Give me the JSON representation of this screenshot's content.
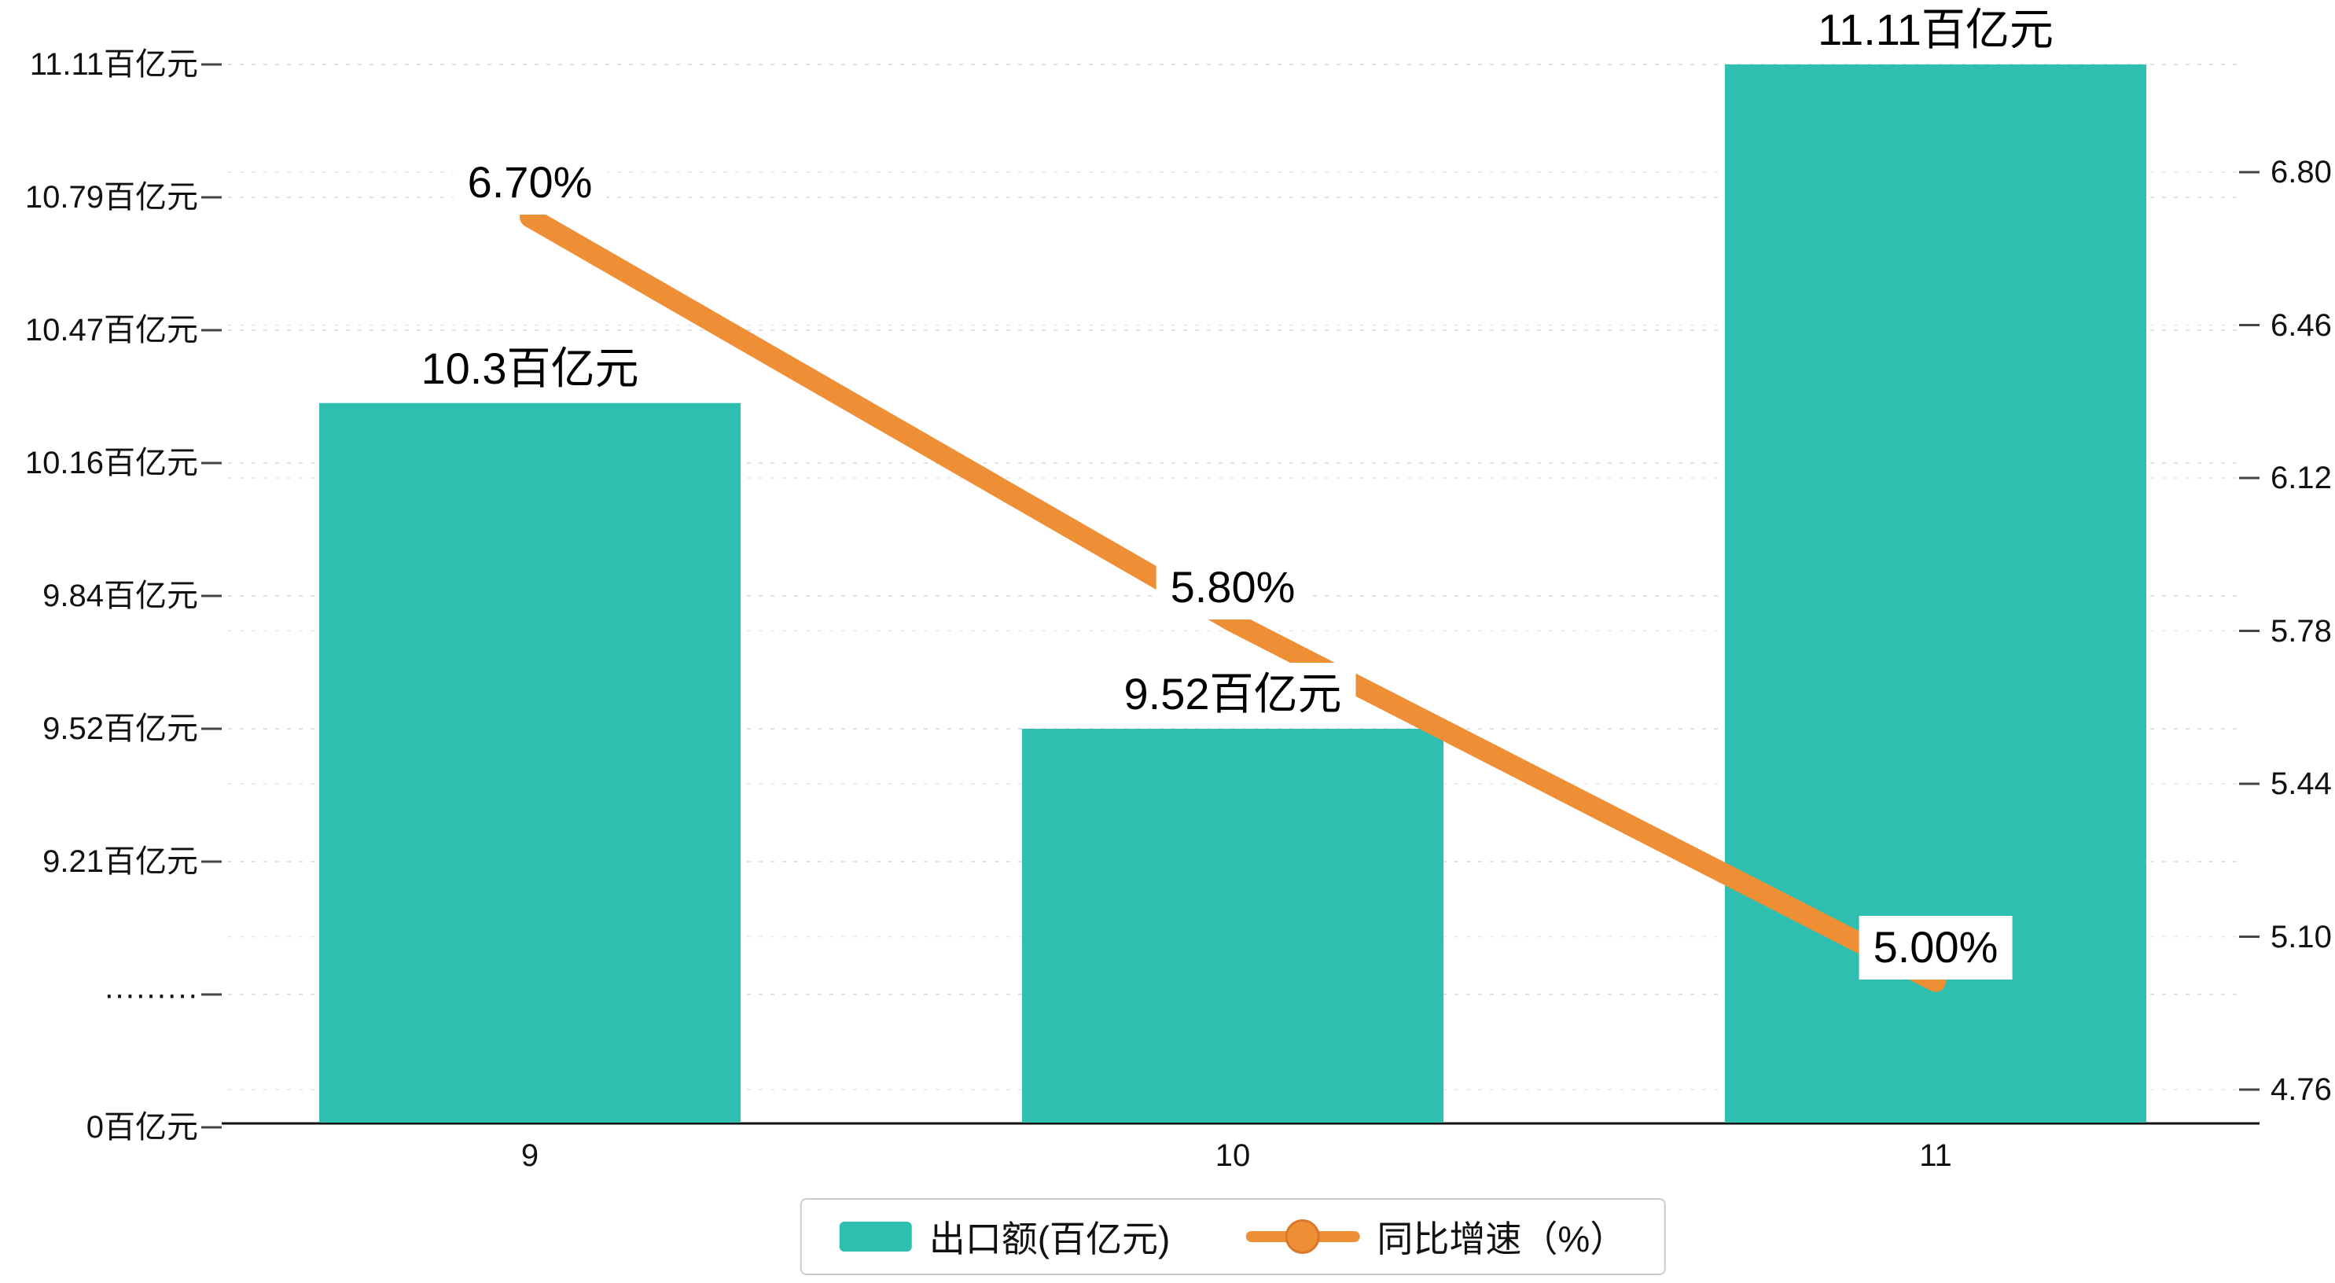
{
  "chart_data": {
    "type": "bar+line combo",
    "categories": [
      "9",
      "10",
      "11"
    ],
    "series": [
      {
        "name": "出口额(百亿元)",
        "type": "bar",
        "axis": "left",
        "color": "#2fbfb0",
        "values": [
          10.3,
          9.52,
          11.11
        ],
        "labels": [
          "10.3百亿元",
          "9.52百亿元",
          "11.11百亿元"
        ]
      },
      {
        "name": "同比增速（%）",
        "type": "line",
        "axis": "right",
        "color": "#ee8f35",
        "marker_border": "#d9772a",
        "values": [
          6.7,
          5.8,
          5.0
        ],
        "labels": [
          "6.70%",
          "5.80%",
          "5.00%"
        ]
      }
    ],
    "left_axis": {
      "tick_labels": [
        "11.11百亿元",
        "10.79百亿元",
        "10.47百亿元",
        "10.16百亿元",
        "9.84百亿元",
        "9.52百亿元",
        "9.21百亿元",
        "·········",
        "0百亿元"
      ],
      "tick_values": [
        11.11,
        10.79,
        10.47,
        10.16,
        9.84,
        9.52,
        9.21,
        null,
        0
      ],
      "broken_axis": true
    },
    "right_axis": {
      "tick_labels": [
        "6.80",
        "6.46",
        "6.12",
        "5.78",
        "5.44",
        "5.10",
        "4.76"
      ],
      "tick_values": [
        6.8,
        6.46,
        6.12,
        5.78,
        5.44,
        5.1,
        4.76
      ],
      "range": [
        4.76,
        6.8
      ]
    },
    "grid": "horizontal dashed",
    "legend_position": "bottom center",
    "background": "#ffffff"
  }
}
